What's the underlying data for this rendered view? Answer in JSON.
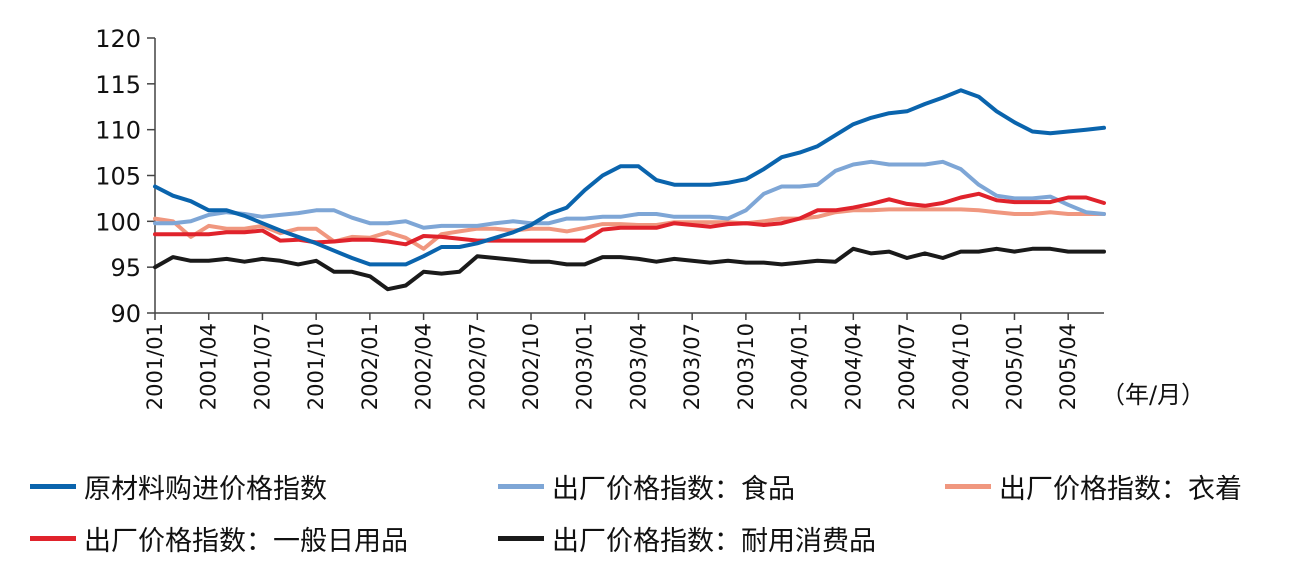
{
  "chart_data": {
    "type": "line",
    "unit_label": "（年/月）",
    "ylim": [
      90,
      120
    ],
    "yticks": [
      90,
      95,
      100,
      105,
      110,
      115,
      120
    ],
    "x": [
      "2001/01",
      "2001/02",
      "2001/03",
      "2001/04",
      "2001/05",
      "2001/06",
      "2001/07",
      "2001/08",
      "2001/09",
      "2001/10",
      "2001/11",
      "2001/12",
      "2002/01",
      "2002/02",
      "2002/03",
      "2002/04",
      "2002/05",
      "2002/06",
      "2002/07",
      "2002/08",
      "2002/09",
      "2002/10",
      "2002/11",
      "2002/12",
      "2003/01",
      "2003/02",
      "2003/03",
      "2003/04",
      "2003/05",
      "2003/06",
      "2003/07",
      "2003/08",
      "2003/09",
      "2003/10",
      "2003/11",
      "2003/12",
      "2004/01",
      "2004/02",
      "2004/03",
      "2004/04",
      "2004/05",
      "2004/06",
      "2004/07",
      "2004/08",
      "2004/09",
      "2004/10",
      "2004/11",
      "2004/12",
      "2005/01",
      "2005/02",
      "2005/03",
      "2005/04",
      "2005/05",
      "2005/06"
    ],
    "xtick_labels": [
      "2001/01",
      "2001/04",
      "2001/07",
      "2001/10",
      "2002/01",
      "2002/04",
      "2002/07",
      "2002/10",
      "2003/01",
      "2003/04",
      "2003/07",
      "2003/10",
      "2004/01",
      "2004/04",
      "2004/07",
      "2004/10",
      "2005/01",
      "2005/04"
    ],
    "grid": false,
    "legend_position": "bottom",
    "series": [
      {
        "name": "原材料购进价格指数",
        "color": "#0a64ad",
        "values": [
          103.8,
          102.8,
          102.2,
          101.2,
          101.2,
          100.6,
          99.8,
          99,
          98.3,
          97.6,
          96.8,
          96,
          95.3,
          95.3,
          95.3,
          96.2,
          97.2,
          97.2,
          97.6,
          98.2,
          98.8,
          99.6,
          100.8,
          101.5,
          103.4,
          105,
          106,
          106,
          104.5,
          104,
          104,
          104,
          104.2,
          104.6,
          105.7,
          107,
          107.5,
          108.2,
          109.4,
          110.6,
          111.3,
          111.8,
          112,
          112.8,
          113.5,
          114.3,
          113.6,
          112,
          110.8,
          109.8,
          109.6,
          109.8,
          110,
          110.2
        ]
      },
      {
        "name": "出厂价格指数：食品",
        "color": "#7ea6d6",
        "values": [
          99.8,
          99.8,
          100,
          100.7,
          101,
          100.8,
          100.5,
          100.7,
          100.9,
          101.2,
          101.2,
          100.4,
          99.8,
          99.8,
          100,
          99.3,
          99.5,
          99.5,
          99.5,
          99.8,
          100,
          99.8,
          99.8,
          100.3,
          100.3,
          100.5,
          100.5,
          100.8,
          100.8,
          100.5,
          100.5,
          100.5,
          100.3,
          101.2,
          103,
          103.8,
          103.8,
          104,
          105.5,
          106.2,
          106.5,
          106.2,
          106.2,
          106.2,
          106.5,
          105.7,
          104,
          102.8,
          102.5,
          102.5,
          102.7,
          101.8,
          101,
          100.8
        ]
      },
      {
        "name": "出厂价格指数：衣着",
        "color": "#f0977f",
        "values": [
          100.3,
          100,
          98.3,
          99.5,
          99.2,
          99.2,
          99.5,
          98.7,
          99.2,
          99.2,
          97.8,
          98.3,
          98.2,
          98.8,
          98.2,
          97,
          98.6,
          98.9,
          99.2,
          99.2,
          99,
          99.2,
          99.2,
          98.9,
          99.3,
          99.7,
          99.7,
          99.6,
          99.6,
          99.9,
          99.9,
          99.9,
          99.9,
          99.8,
          100,
          100.3,
          100.3,
          100.5,
          101,
          101.2,
          101.2,
          101.3,
          101.3,
          101.3,
          101.3,
          101.3,
          101.2,
          101,
          100.8,
          100.8,
          101,
          100.8,
          100.8,
          100.8
        ]
      },
      {
        "name": "出厂价格指数：一般日用品",
        "color": "#e0232c",
        "values": [
          98.6,
          98.6,
          98.6,
          98.6,
          98.8,
          98.8,
          99,
          97.9,
          98,
          97.7,
          97.8,
          98,
          98,
          97.8,
          97.5,
          98.4,
          98.3,
          98.1,
          97.9,
          97.9,
          97.9,
          97.9,
          97.9,
          97.9,
          97.9,
          99.1,
          99.3,
          99.3,
          99.3,
          99.8,
          99.6,
          99.4,
          99.7,
          99.8,
          99.6,
          99.8,
          100.3,
          101.2,
          101.2,
          101.5,
          101.9,
          102.4,
          101.9,
          101.7,
          102,
          102.6,
          103,
          102.3,
          102.1,
          102.1,
          102.1,
          102.6,
          102.6,
          102
        ]
      },
      {
        "name": "出厂价格指数：耐用消费品",
        "color": "#1a1a1a",
        "values": [
          95,
          96.1,
          95.7,
          95.7,
          95.9,
          95.6,
          95.9,
          95.7,
          95.3,
          95.7,
          94.5,
          94.5,
          94,
          92.6,
          93,
          94.5,
          94.3,
          94.5,
          96.2,
          96,
          95.8,
          95.6,
          95.6,
          95.3,
          95.3,
          96.1,
          96.1,
          95.9,
          95.6,
          95.9,
          95.7,
          95.5,
          95.7,
          95.5,
          95.5,
          95.3,
          95.5,
          95.7,
          95.6,
          97,
          96.5,
          96.7,
          96,
          96.5,
          96,
          96.7,
          96.7,
          97,
          96.7,
          97,
          97,
          96.7,
          96.7,
          96.7
        ]
      }
    ]
  }
}
